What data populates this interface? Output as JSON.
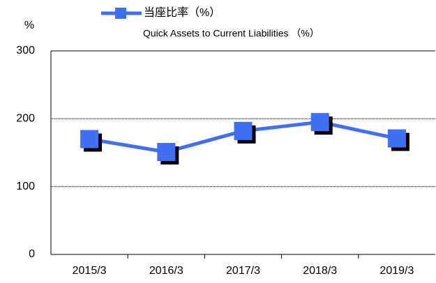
{
  "chart_data": {
    "type": "line",
    "y_label": "%",
    "subtitle": "Quick Assets to Current Liabilities （%）",
    "categories": [
      "2015/3",
      "2016/3",
      "2017/3",
      "2018/3",
      "2019/3"
    ],
    "series": [
      {
        "name": "当座比率（%）",
        "color": "#3f6ff2",
        "values": [
          170,
          151,
          182,
          195,
          171
        ]
      }
    ],
    "ylim": [
      0,
      300
    ],
    "yticks": [
      0,
      100,
      200,
      300
    ],
    "grid": true
  }
}
